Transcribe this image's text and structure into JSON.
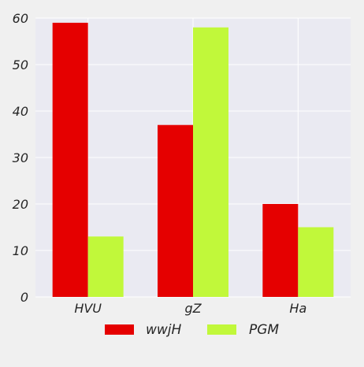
{
  "chart_data": {
    "type": "bar",
    "title": "",
    "xlabel": "",
    "ylabel": "",
    "categories": [
      "HVU",
      "gZ",
      "Ha"
    ],
    "series": [
      {
        "name": "wwjH",
        "values": [
          59,
          37,
          20
        ],
        "color": "#e50000"
      },
      {
        "name": "PGM",
        "values": [
          13,
          58,
          15
        ],
        "color": "#c1f83a"
      }
    ],
    "ylim": [
      0,
      60
    ],
    "yticks": [
      0,
      10,
      20,
      30,
      40,
      50,
      60
    ],
    "grid": true,
    "legend_position": "bottom-center",
    "colors": {
      "plot_background": "#eaeaf2",
      "page_background": "#f0f0f0",
      "grid": "#ffffff"
    }
  }
}
